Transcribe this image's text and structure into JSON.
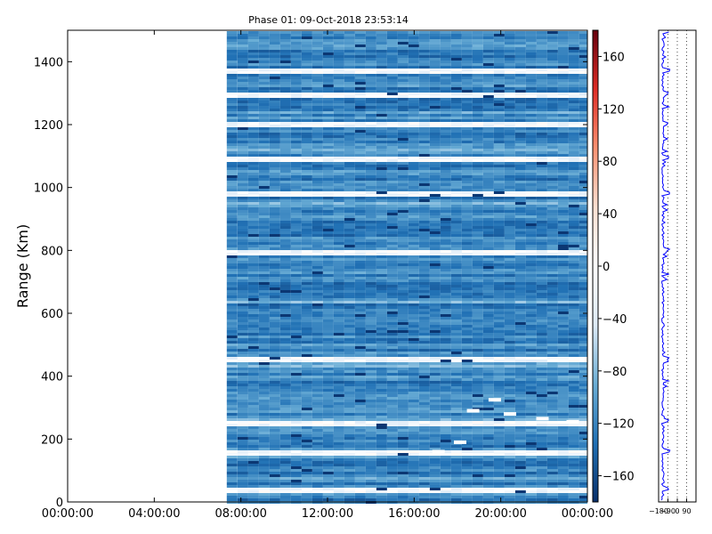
{
  "chart_data": [
    {
      "type": "heatmap",
      "title": "Phase 01: 09-Oct-2018 23:53:14",
      "ylabel": "Range (Km)",
      "xlabel": "",
      "x_ticks": [
        "00:00:00",
        "04:00:00",
        "08:00:00",
        "12:00:00",
        "16:00:00",
        "20:00:00",
        "00:00:00"
      ],
      "x_range_hours": [
        0,
        24
      ],
      "y_ticks": [
        0,
        200,
        400,
        600,
        800,
        1000,
        1200,
        1400
      ],
      "ylim": [
        0,
        1500
      ],
      "data_start_hour": 7.35,
      "data_end_hour": 24,
      "colorbar": {
        "ticks": [
          160,
          120,
          80,
          40,
          0,
          -40,
          -80,
          -120,
          -160
        ],
        "range": [
          -180,
          180
        ],
        "colormap": [
          "#08306b",
          "#2171b5",
          "#6baed6",
          "#deebf7",
          "#ffffff",
          "#fee0d2",
          "#fc9272",
          "#de2d26",
          "#67000d"
        ]
      },
      "bright_bands_km": [
        1370,
        1300,
        1205,
        1095,
        980,
        800,
        455,
        255,
        160,
        40
      ],
      "echo_trail": [
        {
          "hour": 17.0,
          "range_km": 160
        },
        {
          "hour": 18.0,
          "range_km": 190
        },
        {
          "hour": 18.6,
          "range_km": 290
        },
        {
          "hour": 19.6,
          "range_km": 325
        },
        {
          "hour": 20.3,
          "range_km": 280
        },
        {
          "hour": 21.8,
          "range_km": 265
        },
        {
          "hour": 23.2,
          "range_km": 255
        }
      ]
    },
    {
      "type": "line",
      "title": "",
      "x_ticks": [
        "−180",
        "−90",
        "0",
        "90"
      ],
      "xlim": [
        -180,
        180
      ],
      "ylim": [
        0,
        1500
      ],
      "grid": "vertical dotted",
      "series_color": "#0000ff"
    }
  ]
}
